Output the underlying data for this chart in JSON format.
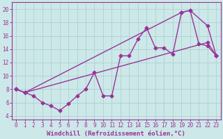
{
  "xlabel": "Windchill (Refroidissement éolien,°C)",
  "background_color": "#cce8e8",
  "line_color": "#993399",
  "grid_color": "#aacccc",
  "xlim": [
    -0.5,
    23.5
  ],
  "ylim": [
    3.5,
    21.0
  ],
  "yticks": [
    4,
    6,
    8,
    10,
    12,
    14,
    16,
    18,
    20
  ],
  "xticks": [
    0,
    1,
    2,
    3,
    4,
    5,
    6,
    7,
    8,
    9,
    10,
    11,
    12,
    13,
    14,
    15,
    16,
    17,
    18,
    19,
    20,
    21,
    22,
    23
  ],
  "line1_x": [
    0,
    1,
    2,
    3,
    4,
    5,
    6,
    7,
    8,
    9,
    10,
    11,
    12,
    13,
    14,
    15,
    16,
    17,
    18,
    19,
    20,
    21,
    22,
    23
  ],
  "line1_y": [
    8.0,
    7.5,
    7.0,
    6.0,
    5.5,
    4.8,
    5.8,
    7.0,
    8.0,
    10.5,
    7.0,
    7.0,
    13.0,
    13.0,
    15.5,
    17.2,
    14.2,
    14.2,
    13.2,
    19.5,
    19.8,
    14.8,
    14.5,
    13.0
  ],
  "line2_x": [
    0,
    1,
    22,
    23
  ],
  "line2_y": [
    8.0,
    7.5,
    15.0,
    13.0
  ],
  "line3_x": [
    0,
    1,
    19,
    20,
    22,
    23
  ],
  "line3_y": [
    8.0,
    7.5,
    19.5,
    19.8,
    17.5,
    13.0
  ],
  "marker": "D",
  "markersize": 2.5,
  "linewidth": 1.0,
  "tick_fontsize": 5.5,
  "xlabel_fontsize": 6.5
}
